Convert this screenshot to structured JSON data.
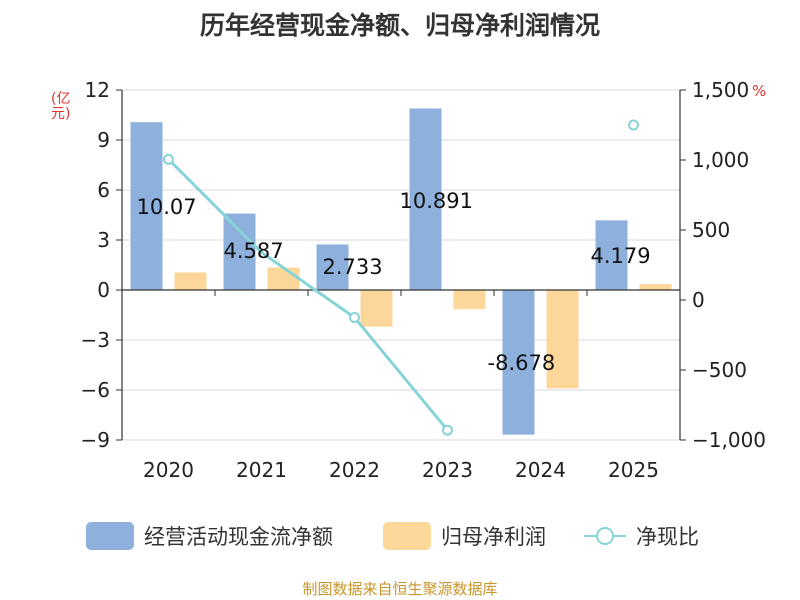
{
  "title": "历年经营现金净额、归母净利润情况",
  "y_unit": "(亿元)",
  "y2_unit": "%",
  "footer": "制图数据来自恒生聚源数据库",
  "colors": {
    "cash": "#8eb0dc",
    "profit": "#fdd699",
    "ratio": "#86d4d8",
    "unit": "#e0332b",
    "footer": "#c8962c"
  },
  "chart_data": {
    "type": "bar",
    "categories": [
      "2020",
      "2021",
      "2022",
      "2023",
      "2024",
      "2025"
    ],
    "series": [
      {
        "name": "经营活动现金流净额",
        "type": "bar",
        "axis": "left",
        "values": [
          10.07,
          4.587,
          2.733,
          10.891,
          -8.678,
          4.179
        ],
        "labels": [
          "10.07",
          "4.587",
          "2.733",
          "10.891",
          "-8.678",
          "4.179"
        ]
      },
      {
        "name": "归母净利润",
        "type": "bar",
        "axis": "left",
        "values": [
          1.05,
          1.35,
          -2.2,
          -1.15,
          -5.9,
          0.35
        ]
      },
      {
        "name": "净现比",
        "type": "line",
        "axis": "right",
        "values": [
          1005,
          null,
          null,
          null,
          null,
          1250
        ],
        "segment_values": [
          1005,
          340,
          -125,
          -930
        ]
      }
    ],
    "y_left": {
      "min": -9,
      "max": 12,
      "ticks": [
        "12",
        "9",
        "6",
        "3",
        "0",
        "-3",
        "-6",
        "-9"
      ]
    },
    "y_right": {
      "min": -1000,
      "max": 1500,
      "ticks": [
        "1,500",
        "1,000",
        "500",
        "0",
        "-500",
        "-1,000"
      ]
    },
    "grid": true,
    "legend": "bottom"
  }
}
